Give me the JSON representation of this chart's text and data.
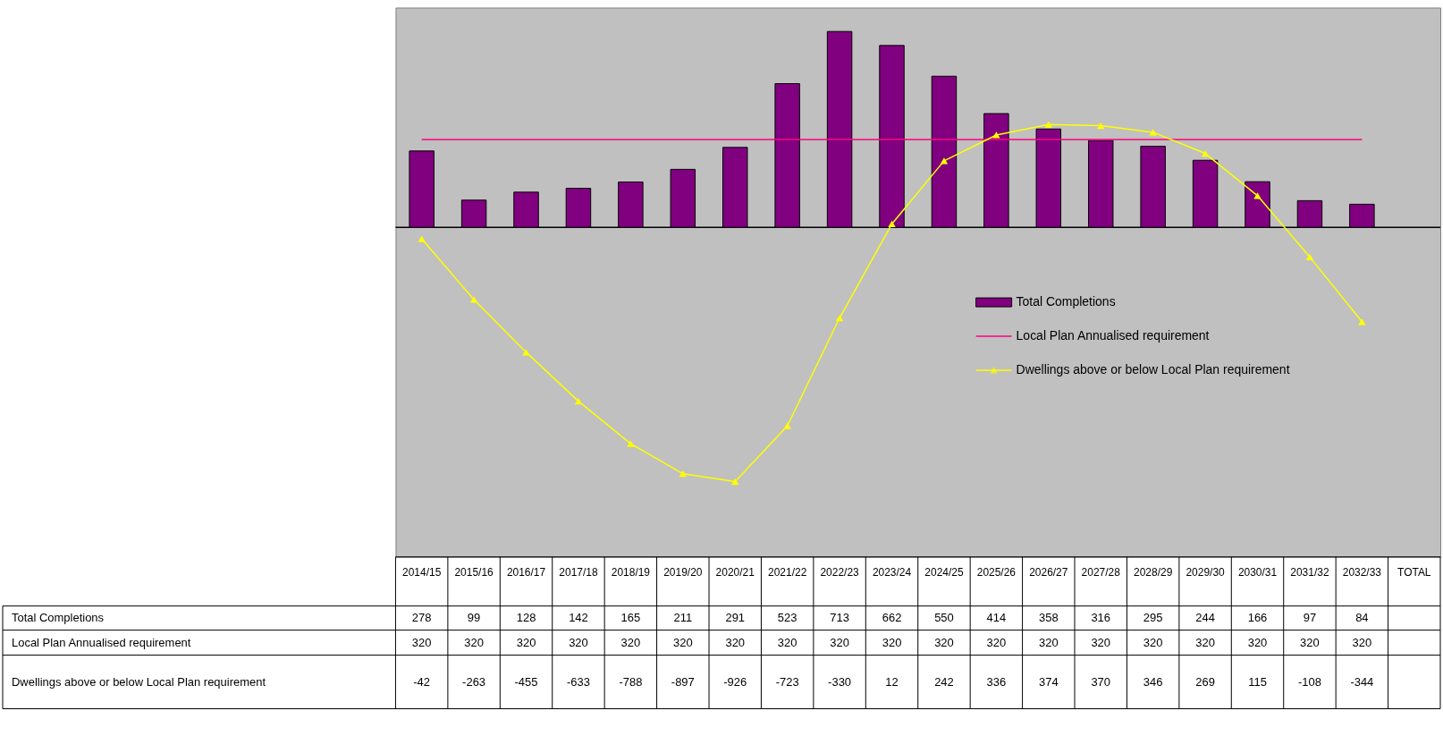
{
  "chart_data": {
    "type": "bar",
    "categories": [
      "2014/15",
      "2015/16",
      "2016/17",
      "2017/18",
      "2018/19",
      "2019/20",
      "2020/21",
      "2021/22",
      "2022/23",
      "2023/24",
      "2024/25",
      "2025/26",
      "2026/27",
      "2027/28",
      "2028/29",
      "2029/30",
      "2030/31",
      "2031/32",
      "2032/33",
      "TOTAL"
    ],
    "series": [
      {
        "name": "Total Completions",
        "color": "#800080",
        "values": [
          278,
          99,
          128,
          142,
          165,
          211,
          291,
          523,
          713,
          662,
          550,
          414,
          358,
          316,
          295,
          244,
          166,
          97,
          84,
          null
        ]
      },
      {
        "name": "Local Plan Annualised requirement",
        "type": "line",
        "color": "#ff0080",
        "values": [
          320,
          320,
          320,
          320,
          320,
          320,
          320,
          320,
          320,
          320,
          320,
          320,
          320,
          320,
          320,
          320,
          320,
          320,
          320,
          null
        ]
      },
      {
        "name": "Dwellings above or below Local Plan requirement",
        "type": "line",
        "marker": "triangle",
        "color": "#ffff00",
        "values": [
          -42,
          -263,
          -455,
          -633,
          -788,
          -897,
          -926,
          -723,
          -330,
          12,
          242,
          336,
          374,
          370,
          346,
          269,
          115,
          -108,
          -344,
          null
        ]
      }
    ],
    "ylim": [
      -1200,
      800
    ],
    "grid": false,
    "legend": "right",
    "data_labels": true
  }
}
